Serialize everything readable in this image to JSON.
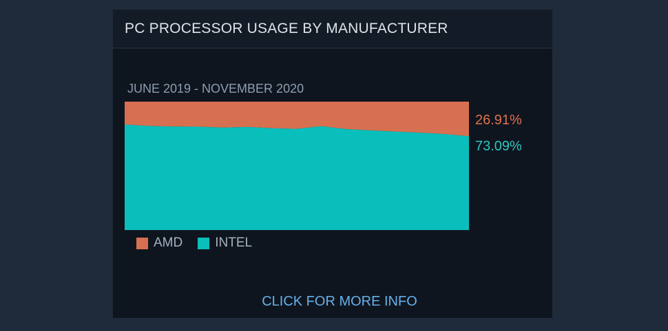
{
  "panel": {
    "title": "PC PROCESSOR USAGE BY MANUFACTURER",
    "more_info_label": "CLICK FOR MORE INFO"
  },
  "chart_data": {
    "type": "area",
    "stacked": true,
    "normalized_to_100": true,
    "subtitle": "JUNE 2019 - NOVEMBER 2020",
    "x_range": [
      "JUNE 2019",
      "NOVEMBER 2020"
    ],
    "ylim": [
      0,
      100
    ],
    "grid": false,
    "legend_position": "bottom-left",
    "series": [
      {
        "name": "INTEL",
        "color": "#0abfbb",
        "label_color": "#2ec6c0",
        "values": [
          82.2,
          81.0,
          80.6,
          80.5,
          79.8,
          80.3,
          79.3,
          78.8,
          80.9,
          78.6,
          77.6,
          76.7,
          75.8,
          74.8,
          73.09
        ],
        "latest": "73.09%"
      },
      {
        "name": "AMD",
        "color": "#d77050",
        "label_color": "#e0714d",
        "values": [
          17.8,
          19.0,
          19.4,
          19.5,
          20.2,
          19.7,
          20.7,
          21.2,
          19.1,
          21.4,
          22.4,
          23.3,
          24.2,
          25.2,
          26.91
        ],
        "latest": "26.91%"
      }
    ]
  }
}
